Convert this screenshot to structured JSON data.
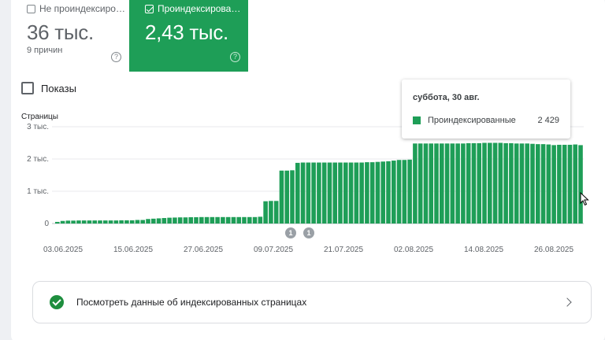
{
  "tiles": {
    "not_indexed": {
      "label": "Не проиндексиро…",
      "value": "36 тыс.",
      "sub": "9 причин",
      "checked": false
    },
    "indexed": {
      "label": "Проиндексирова…",
      "value": "2,43 тыс.",
      "checked": true
    }
  },
  "help_glyph": "?",
  "impressions": {
    "label": "Показы",
    "checked": false
  },
  "colors": {
    "accent": "#1e9e57",
    "check": "#1e8e3e"
  },
  "chart_data": {
    "type": "bar",
    "ylabel": "Страницы",
    "yticks": [
      "3 тыс.",
      "2 тыс.",
      "1 тыс.",
      "0"
    ],
    "ylim": [
      0,
      3000
    ],
    "grid": true,
    "xticks": [
      "03.06.2025",
      "15.06.2025",
      "27.06.2025",
      "09.07.2025",
      "21.07.2025",
      "02.08.2025",
      "14.08.2025",
      "26.08.2025"
    ],
    "series": [
      {
        "name": "Проиндексированные",
        "values": [
          50,
          80,
          90,
          90,
          95,
          95,
          95,
          95,
          95,
          95,
          95,
          95,
          100,
          100,
          100,
          110,
          110,
          140,
          150,
          160,
          170,
          180,
          185,
          190,
          190,
          195,
          195,
          200,
          200,
          200,
          200,
          200,
          200,
          200,
          200,
          200,
          200,
          200,
          210,
          690,
          700,
          700,
          1640,
          1640,
          1650,
          1880,
          1890,
          1890,
          1890,
          1890,
          1890,
          1890,
          1890,
          1890,
          1890,
          1890,
          1890,
          1890,
          1900,
          1900,
          1910,
          1920,
          1930,
          1950,
          1970,
          1970,
          1980,
          2480,
          2480,
          2480,
          2480,
          2480,
          2480,
          2480,
          2480,
          2480,
          2480,
          2490,
          2490,
          2490,
          2500,
          2500,
          2500,
          2500,
          2490,
          2490,
          2480,
          2480,
          2480,
          2470,
          2460,
          2460,
          2450,
          2430,
          2440,
          2440,
          2440,
          2450,
          2429
        ]
      }
    ],
    "markers": [
      "1",
      "1"
    ]
  },
  "tooltip": {
    "date": "суббота, 30 авг.",
    "series": "Проиндексированные",
    "value": "2 429"
  },
  "footer": {
    "text": "Посмотреть данные об индексированных страницах"
  }
}
